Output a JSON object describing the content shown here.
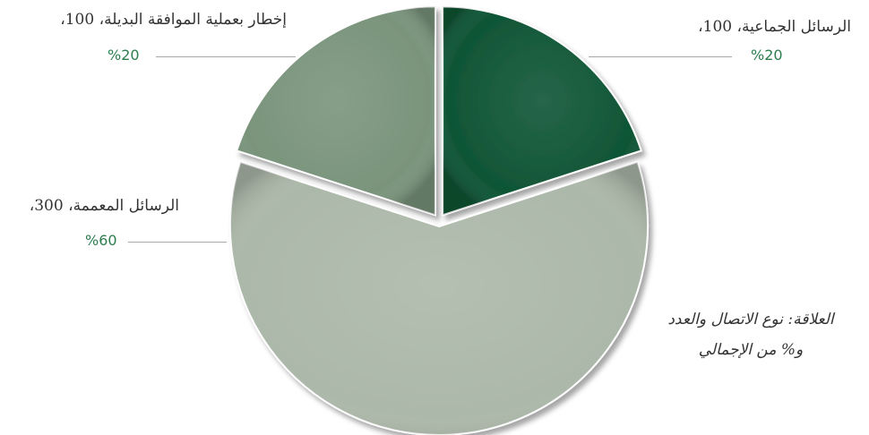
{
  "chart_data": {
    "type": "pie",
    "title": "",
    "slices": [
      {
        "name": "الرسائل الجماعية",
        "value": 100,
        "percent": "20%",
        "color": "#0f5535",
        "label": "الرسائل الجماعية، 100،",
        "percent_label": "%20"
      },
      {
        "name": "الرسائل المعممة",
        "value": 300,
        "percent": "60%",
        "color": "#acb8a9",
        "label": "الرسائل المعممة، 300،",
        "percent_label": "%60"
      },
      {
        "name": "إخطار بعملية الموافقة البديلة",
        "value": 100,
        "percent": "20%",
        "color": "#7a947c",
        "label": "إخطار بعملية الموافقة البديلة، 100،",
        "percent_label": "%20"
      }
    ],
    "start_angle_deg": 0,
    "direction": "clockwise",
    "percent_label_color": "#2e7d4f",
    "caption_line1": "العلاقة: نوع الاتصال والعدد",
    "caption_line2": "و% من الإجمالي"
  }
}
